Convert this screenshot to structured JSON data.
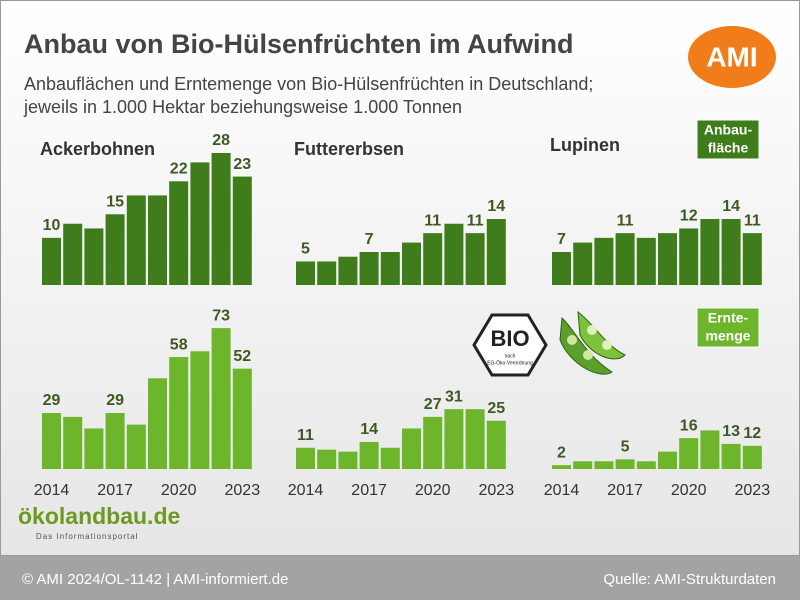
{
  "title": "Anbau von Bio-Hülsenfrüchten im Aufwind",
  "subtitle": [
    "Anbauflächen und Erntemenge von Bio-Hülsenfrüchten in Deutschland;",
    "jeweils in 1.000 Hektar beziehungsweise 1.000 Tonnen"
  ],
  "logo": "AMI",
  "badges": [
    {
      "lines": [
        "Anbau-",
        "fläche"
      ],
      "color": "#3f7d1c"
    },
    {
      "lines": [
        "Ernte-",
        "menge"
      ],
      "color": "#6db52b"
    }
  ],
  "bio_logo": {
    "text": "BIO",
    "note": [
      "nach",
      "EG-Öko-Verordnung"
    ]
  },
  "oekolandbau": {
    "name": "ökolandbau.de",
    "tagline": "Das Informationsportal"
  },
  "footer": {
    "left": "© AMI 2024/OL-1142 | AMI-informiert.de",
    "right": "Quelle: AMI-Strukturdaten"
  },
  "chart_data": [
    {
      "type": "bar",
      "title": "Ackerbohnen",
      "values": [
        10,
        13,
        12,
        15,
        19,
        19,
        22,
        26,
        28,
        23
      ],
      "value_labels": [
        "10",
        null,
        null,
        "15",
        null,
        null,
        "22",
        null,
        "28",
        "23"
      ],
      "color": "#3f7d1c",
      "ylim": [
        0,
        35
      ]
    },
    {
      "type": "bar",
      "title": "Futtererbsen",
      "values": [
        5,
        5,
        6,
        7,
        7,
        9,
        11,
        13,
        11,
        14
      ],
      "value_labels": [
        "5",
        null,
        null,
        "7",
        null,
        null,
        "11",
        null,
        "11",
        "14"
      ],
      "color": "#3f7d1c",
      "ylim": [
        0,
        35
      ]
    },
    {
      "type": "bar",
      "title": "Lupinen",
      "values": [
        7,
        9,
        10,
        11,
        10,
        11,
        12,
        14,
        14,
        11
      ],
      "value_labels": [
        "7",
        null,
        null,
        "11",
        null,
        null,
        "12",
        null,
        "14",
        "11"
      ],
      "color": "#3f7d1c",
      "ylim": [
        0,
        35
      ]
    },
    {
      "type": "bar",
      "categories": [
        "2014",
        null,
        null,
        "2017",
        null,
        null,
        "2020",
        null,
        null,
        "2023"
      ],
      "values": [
        29,
        27,
        21,
        29,
        23,
        47,
        58,
        61,
        73,
        52
      ],
      "value_labels": [
        "29",
        null,
        null,
        "29",
        null,
        null,
        "58",
        null,
        "73",
        "52"
      ],
      "color": "#6db52b",
      "ylim": [
        0,
        80
      ]
    },
    {
      "type": "bar",
      "categories": [
        "2014",
        null,
        null,
        "2017",
        null,
        null,
        "2020",
        null,
        null,
        "2023"
      ],
      "values": [
        11,
        10,
        9,
        14,
        11,
        21,
        27,
        31,
        31,
        25
      ],
      "value_labels": [
        "11",
        null,
        null,
        "14",
        null,
        null,
        "27",
        "31",
        null,
        "25"
      ],
      "color": "#6db52b",
      "ylim": [
        0,
        80
      ]
    },
    {
      "type": "bar",
      "categories": [
        "2014",
        null,
        null,
        "2017",
        null,
        null,
        "2020",
        null,
        null,
        "2023"
      ],
      "values": [
        2,
        4,
        4,
        5,
        4,
        9,
        16,
        20,
        13,
        12
      ],
      "value_labels": [
        "2",
        null,
        null,
        "5",
        null,
        null,
        "16",
        null,
        "13",
        "12"
      ],
      "color": "#6db52b",
      "ylim": [
        0,
        80
      ]
    }
  ]
}
